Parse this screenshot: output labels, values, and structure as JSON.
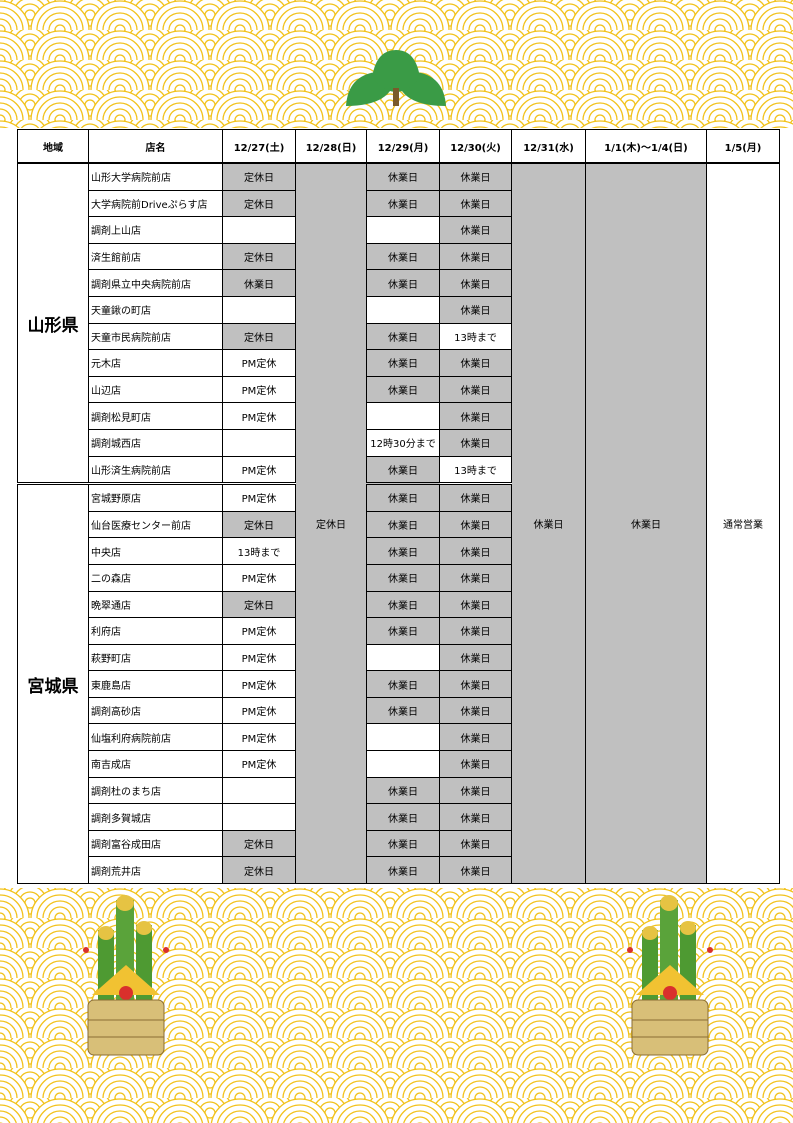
{
  "headers": [
    "地域",
    "店名",
    "12/27(土)",
    "12/28(日)",
    "12/29(月)",
    "12/30(火)",
    "12/31(水)",
    "1/1(木)～1/4(日)",
    "1/5(月)"
  ],
  "merged": {
    "dec28": "定休日",
    "dec31": "休業日",
    "jan1_4": "休業日",
    "jan5": "通常営業"
  },
  "colors": {
    "closed_gray": "#c0c0c0",
    "wave_yellow": "#f2c21b",
    "pine_green": "#3a9b46"
  },
  "regions": [
    {
      "name": "山形県",
      "stores": [
        {
          "name": "山形大学病院前店",
          "d27": "定休日",
          "d29": "休業日",
          "d30": "休業日"
        },
        {
          "name": "大学病院前Driveぷらす店",
          "d27": "定休日",
          "d29": "休業日",
          "d30": "休業日"
        },
        {
          "name": "調剤上山店",
          "d27": "",
          "d29": "",
          "d30": "休業日"
        },
        {
          "name": "済生館前店",
          "d27": "定休日",
          "d29": "休業日",
          "d30": "休業日"
        },
        {
          "name": "調剤県立中央病院前店",
          "d27": "休業日",
          "d29": "休業日",
          "d30": "休業日"
        },
        {
          "name": "天童鍬の町店",
          "d27": "",
          "d29": "",
          "d30": "休業日"
        },
        {
          "name": "天童市民病院前店",
          "d27": "定休日",
          "d29": "休業日",
          "d30": "13時まで"
        },
        {
          "name": "元木店",
          "d27": "PM定休",
          "d29": "休業日",
          "d30": "休業日"
        },
        {
          "name": "山辺店",
          "d27": "PM定休",
          "d29": "休業日",
          "d30": "休業日"
        },
        {
          "name": "調剤松見町店",
          "d27": "PM定休",
          "d29": "",
          "d30": "休業日"
        },
        {
          "name": "調剤城西店",
          "d27": "",
          "d29": "12時30分まで",
          "d30": "休業日"
        },
        {
          "name": "山形済生病院前店",
          "d27": "PM定休",
          "d29": "休業日",
          "d30": "13時まで"
        }
      ]
    },
    {
      "name": "宮城県",
      "stores": [
        {
          "name": "宮城野原店",
          "d27": "PM定休",
          "d29": "休業日",
          "d30": "休業日"
        },
        {
          "name": "仙台医療センター前店",
          "d27": "定休日",
          "d29": "休業日",
          "d30": "休業日"
        },
        {
          "name": "中央店",
          "d27": "13時まで",
          "d29": "休業日",
          "d30": "休業日"
        },
        {
          "name": "二の森店",
          "d27": "PM定休",
          "d29": "休業日",
          "d30": "休業日"
        },
        {
          "name": "晩翠通店",
          "d27": "定休日",
          "d29": "休業日",
          "d30": "休業日"
        },
        {
          "name": "利府店",
          "d27": "PM定休",
          "d29": "休業日",
          "d30": "休業日"
        },
        {
          "name": "萩野町店",
          "d27": "PM定休",
          "d29": "",
          "d30": "休業日"
        },
        {
          "name": "東鹿島店",
          "d27": "PM定休",
          "d29": "休業日",
          "d30": "休業日"
        },
        {
          "name": "調剤高砂店",
          "d27": "PM定休",
          "d29": "休業日",
          "d30": "休業日"
        },
        {
          "name": "仙塩利府病院前店",
          "d27": "PM定休",
          "d29": "",
          "d30": "休業日"
        },
        {
          "name": "南吉成店",
          "d27": "PM定休",
          "d29": "",
          "d30": "休業日"
        },
        {
          "name": "調剤杜のまち店",
          "d27": "",
          "d29": "休業日",
          "d30": "休業日"
        },
        {
          "name": "調剤多賀城店",
          "d27": "",
          "d29": "休業日",
          "d30": "休業日"
        },
        {
          "name": "調剤富谷成田店",
          "d27": "定休日",
          "d29": "休業日",
          "d30": "休業日"
        },
        {
          "name": "調剤荒井店",
          "d27": "定休日",
          "d29": "休業日",
          "d30": "休業日"
        }
      ]
    }
  ]
}
